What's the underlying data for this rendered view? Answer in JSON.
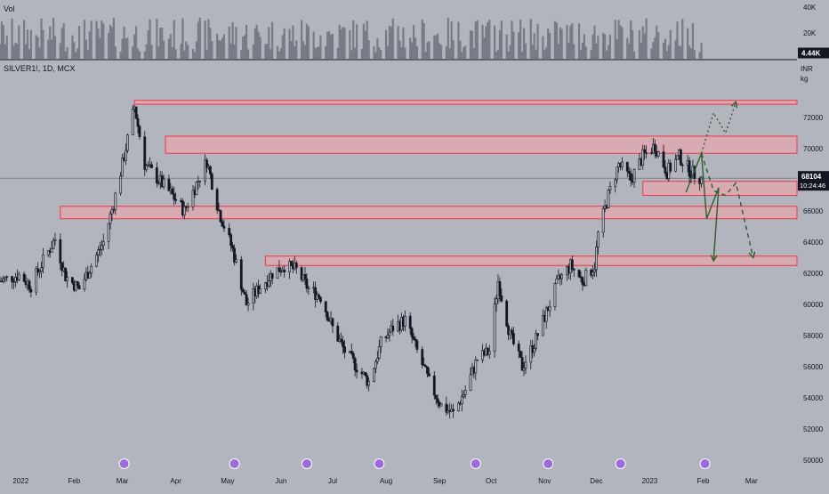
{
  "header": {
    "vol_label": "Vol",
    "symbol_label": "SILVER1!, 1D, MCX",
    "currency": "INR",
    "unit": "kg"
  },
  "colors": {
    "background": "#b2b5be",
    "candle": "#131722",
    "volume": "#787b86",
    "zone_stroke": "#f23645",
    "zone_fill": "#f7a1a8",
    "arrow": "#2e5e2e",
    "price_tag": "#131722"
  },
  "chart_data": [
    {
      "type": "bar",
      "title": "Vol",
      "ylim": [
        0,
        40000
      ],
      "yticks": [
        {
          "value": 40000,
          "label": "40K"
        },
        {
          "value": 20000,
          "label": "20K"
        }
      ],
      "last_value": 4440,
      "last_value_label": "4.44K",
      "note": "daily volume bars, roughly 5K-40K per day, see candles for dates"
    },
    {
      "type": "candlestick",
      "title": "SILVER1!, 1D, MCX",
      "ylabel": "INR / kg",
      "ylim": [
        50000,
        74000
      ],
      "yticks": [
        50000,
        52000,
        54000,
        56000,
        58000,
        60000,
        62000,
        64000,
        66000,
        68000,
        70000,
        72000
      ],
      "ytick_labels": [
        "50000",
        "52000",
        "54000",
        "56000",
        "58000",
        "60000",
        "62000",
        "64000",
        "66000",
        "68000",
        "70000",
        "72000"
      ],
      "xticks": [
        "2022",
        "Feb",
        "Mar",
        "Apr",
        "May",
        "Jun",
        "Jul",
        "Aug",
        "Sep",
        "Oct",
        "Nov",
        "Dec",
        "2023",
        "Feb",
        "Mar"
      ],
      "last_price": 68104,
      "last_price_label": "68104",
      "countdown_label": "10:24:46",
      "close_path": [
        [
          "2021-12-20",
          61500
        ],
        [
          "2021-12-31",
          61900
        ],
        [
          "2022-01-07",
          61200
        ],
        [
          "2022-01-14",
          62800
        ],
        [
          "2022-01-21",
          64200
        ],
        [
          "2022-01-27",
          61800
        ],
        [
          "2022-02-04",
          61000
        ],
        [
          "2022-02-11",
          62500
        ],
        [
          "2022-02-18",
          64000
        ],
        [
          "2022-02-24",
          66500
        ],
        [
          "2022-03-01",
          69000
        ],
        [
          "2022-03-08",
          72700
        ],
        [
          "2022-03-14",
          69000
        ],
        [
          "2022-03-22",
          68000
        ],
        [
          "2022-03-30",
          67000
        ],
        [
          "2022-04-06",
          66000
        ],
        [
          "2022-04-12",
          67500
        ],
        [
          "2022-04-19",
          69200
        ],
        [
          "2022-04-26",
          66000
        ],
        [
          "2022-05-04",
          63500
        ],
        [
          "2022-05-12",
          60000
        ],
        [
          "2022-05-19",
          61000
        ],
        [
          "2022-05-27",
          62000
        ],
        [
          "2022-06-03",
          62500
        ],
        [
          "2022-06-10",
          62200
        ],
        [
          "2022-06-17",
          61000
        ],
        [
          "2022-06-24",
          60500
        ],
        [
          "2022-07-01",
          58500
        ],
        [
          "2022-07-08",
          57000
        ],
        [
          "2022-07-15",
          56000
        ],
        [
          "2022-07-22",
          55000
        ],
        [
          "2022-07-29",
          57500
        ],
        [
          "2022-08-05",
          58500
        ],
        [
          "2022-08-12",
          59000
        ],
        [
          "2022-08-19",
          57000
        ],
        [
          "2022-08-26",
          55000
        ],
        [
          "2022-09-02",
          53500
        ],
        [
          "2022-09-09",
          53000
        ],
        [
          "2022-09-16",
          54500
        ],
        [
          "2022-09-23",
          56500
        ],
        [
          "2022-09-30",
          57000
        ],
        [
          "2022-10-05",
          61500
        ],
        [
          "2022-10-12",
          58000
        ],
        [
          "2022-10-19",
          56000
        ],
        [
          "2022-10-26",
          57500
        ],
        [
          "2022-11-02",
          59500
        ],
        [
          "2022-11-09",
          61500
        ],
        [
          "2022-11-16",
          62500
        ],
        [
          "2022-11-23",
          61500
        ],
        [
          "2022-11-30",
          62500
        ],
        [
          "2022-12-02",
          64500
        ],
        [
          "2022-12-08",
          67000
        ],
        [
          "2022-12-14",
          69000
        ],
        [
          "2022-12-21",
          68000
        ],
        [
          "2022-12-28",
          69500
        ],
        [
          "2023-01-04",
          70200
        ],
        [
          "2023-01-11",
          68500
        ],
        [
          "2023-01-18",
          69500
        ],
        [
          "2023-01-25",
          68500
        ],
        [
          "2023-01-31",
          68104
        ]
      ]
    }
  ],
  "zones": [
    {
      "name": "zone-73000",
      "from": "2022-03-08",
      "to_edge": true,
      "low": 72850,
      "high": 73100
    },
    {
      "name": "zone-70000",
      "from": "2022-03-26",
      "to_edge": true,
      "low": 69700,
      "high": 70800
    },
    {
      "name": "zone-67300",
      "from": "2022-12-28",
      "to_edge": true,
      "low": 67000,
      "high": 67900
    },
    {
      "name": "zone-66000",
      "from": "2022-01-24",
      "to_edge": true,
      "low": 65500,
      "high": 66300
    },
    {
      "name": "zone-62900",
      "from": "2022-05-23",
      "to_edge": true,
      "low": 62500,
      "high": 63100
    }
  ],
  "projections": [
    {
      "name": "projection-solid-1",
      "style": "solid",
      "points": [
        [
          "2023-01-22",
          67200
        ],
        [
          "2023-01-31",
          69700
        ],
        [
          "2023-02-03",
          65500
        ],
        [
          "2023-02-10",
          67500
        ],
        [
          "2023-02-07",
          62800
        ]
      ]
    },
    {
      "name": "projection-dashed-1",
      "style": "dashed",
      "points": [
        [
          "2023-01-31",
          69700
        ],
        [
          "2023-02-07",
          67300
        ],
        [
          "2023-02-14",
          67000
        ],
        [
          "2023-02-20",
          67800
        ],
        [
          "2023-03-02",
          63000
        ]
      ]
    },
    {
      "name": "projection-dotted-1",
      "style": "dotted",
      "points": [
        [
          "2023-01-31",
          69700
        ],
        [
          "2023-02-07",
          72300
        ],
        [
          "2023-02-14",
          71000
        ],
        [
          "2023-02-20",
          73000
        ]
      ]
    }
  ]
}
